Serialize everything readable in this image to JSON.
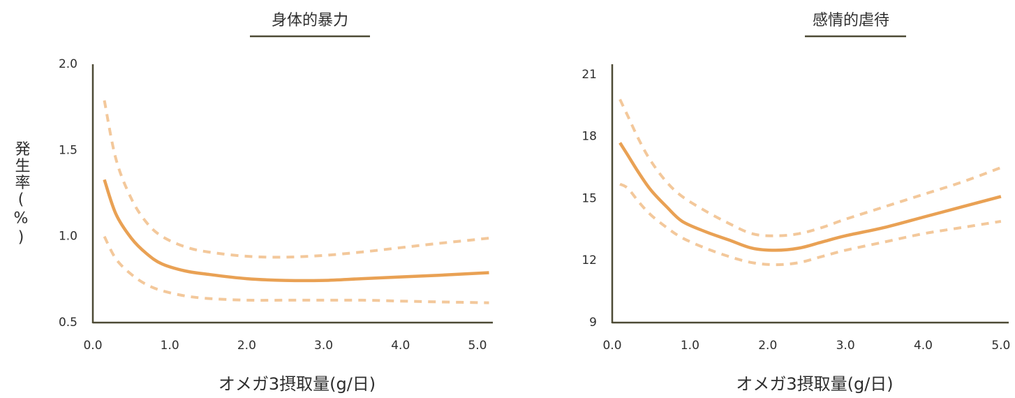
{
  "colors": {
    "axis": "#4d4a35",
    "line": "#e9a154",
    "band": "#f3c89b",
    "text": "#2e2e2e"
  },
  "chart_data": [
    {
      "type": "line",
      "title": "身体的暴力",
      "xlabel": "オメガ3摂取量(g/日)",
      "ylabel": "発生率(%)",
      "xlim": [
        0,
        5.2
      ],
      "ylim": [
        0.5,
        2.0
      ],
      "x_ticks": [
        "0.0",
        "1.0",
        "2.0",
        "3.0",
        "4.0",
        "5.0"
      ],
      "y_ticks": [
        "0.5",
        "1.0",
        "1.5",
        "2.0"
      ],
      "series": [
        {
          "role": "estimate",
          "x": [
            0.15,
            0.3,
            0.5,
            0.7,
            0.9,
            1.2,
            1.5,
            2.0,
            2.5,
            3.0,
            3.5,
            4.0,
            4.5,
            5.15
          ],
          "y": [
            1.33,
            1.13,
            0.99,
            0.9,
            0.84,
            0.8,
            0.78,
            0.755,
            0.745,
            0.745,
            0.755,
            0.765,
            0.775,
            0.79
          ]
        },
        {
          "role": "upper",
          "x": [
            0.15,
            0.3,
            0.5,
            0.7,
            0.9,
            1.2,
            1.5,
            2.0,
            2.5,
            3.0,
            3.5,
            4.0,
            4.5,
            5.15
          ],
          "y": [
            1.79,
            1.45,
            1.22,
            1.08,
            1.0,
            0.94,
            0.91,
            0.885,
            0.88,
            0.89,
            0.91,
            0.935,
            0.96,
            0.99
          ]
        },
        {
          "role": "lower",
          "x": [
            0.15,
            0.3,
            0.5,
            0.7,
            0.9,
            1.2,
            1.5,
            2.0,
            2.5,
            3.0,
            3.5,
            4.0,
            4.5,
            5.15
          ],
          "y": [
            1.0,
            0.87,
            0.78,
            0.72,
            0.685,
            0.655,
            0.64,
            0.63,
            0.63,
            0.63,
            0.63,
            0.625,
            0.62,
            0.615
          ]
        }
      ]
    },
    {
      "type": "line",
      "title": "感情的虐待",
      "xlabel": "オメガ3摂取量(g/日)",
      "ylabel": "",
      "xlim": [
        0,
        5.1
      ],
      "ylim": [
        9,
        21.5
      ],
      "x_ticks": [
        "0.0",
        "1.0",
        "2.0",
        "3.0",
        "4.0",
        "5.0"
      ],
      "y_ticks": [
        "9",
        "12",
        "15",
        "18",
        "21"
      ],
      "series": [
        {
          "role": "estimate",
          "x": [
            0.1,
            0.2,
            0.35,
            0.5,
            0.7,
            0.9,
            1.2,
            1.5,
            1.8,
            2.1,
            2.4,
            2.7,
            3.0,
            3.5,
            4.0,
            4.5,
            5.0
          ],
          "y": [
            17.7,
            17.1,
            16.2,
            15.4,
            14.6,
            13.9,
            13.4,
            13.0,
            12.6,
            12.5,
            12.6,
            12.9,
            13.2,
            13.6,
            14.1,
            14.6,
            15.1
          ]
        },
        {
          "role": "upper",
          "x": [
            0.1,
            0.2,
            0.35,
            0.5,
            0.7,
            0.9,
            1.2,
            1.5,
            1.8,
            2.1,
            2.4,
            2.7,
            3.0,
            3.5,
            4.0,
            4.5,
            5.0
          ],
          "y": [
            19.8,
            19.0,
            17.8,
            16.8,
            15.8,
            15.1,
            14.4,
            13.8,
            13.3,
            13.2,
            13.3,
            13.6,
            14.0,
            14.6,
            15.2,
            15.8,
            16.5
          ]
        },
        {
          "role": "lower",
          "x": [
            0.1,
            0.2,
            0.35,
            0.5,
            0.7,
            0.9,
            1.2,
            1.5,
            1.8,
            2.1,
            2.4,
            2.7,
            3.0,
            3.5,
            4.0,
            4.5,
            5.0
          ],
          "y": [
            15.7,
            15.5,
            14.8,
            14.2,
            13.6,
            13.1,
            12.6,
            12.2,
            11.9,
            11.8,
            11.9,
            12.2,
            12.5,
            12.9,
            13.3,
            13.6,
            13.9
          ]
        }
      ]
    }
  ]
}
